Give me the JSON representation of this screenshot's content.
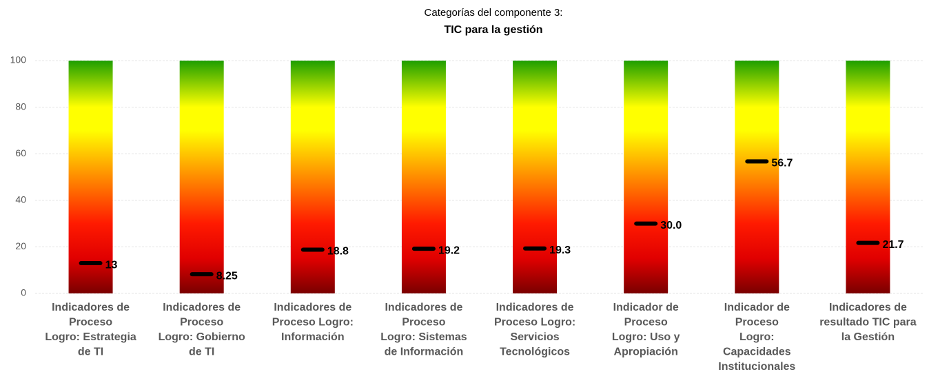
{
  "chart_data": {
    "type": "marker",
    "title": "Categorías del componente 3:",
    "subtitle": "TIC para la gestión",
    "categories": [
      [
        "Indicadores de",
        "Proceso",
        "Logro: Estrategia",
        "de TI"
      ],
      [
        "Indicadores de",
        "Proceso",
        "Logro: Gobierno",
        "de TI"
      ],
      [
        "Indicadores de",
        "Proceso Logro:",
        "Información"
      ],
      [
        "Indicadores de",
        "Proceso",
        "Logro: Sistemas",
        "de Información"
      ],
      [
        "Indicadores de",
        "Proceso  Logro:",
        "Servicios",
        "Tecnológicos"
      ],
      [
        "Indicador de",
        "Proceso",
        "Logro: Uso y",
        "Apropiación"
      ],
      [
        "Indicador de",
        "Proceso",
        "Logro:",
        "Capacidades",
        "Institucionales"
      ],
      [
        "Indicadores de",
        "resultado TIC para",
        "la Gestión"
      ]
    ],
    "values": [
      13,
      8.25,
      18.8,
      19.2,
      19.3,
      30.0,
      56.7,
      21.7
    ],
    "value_labels": [
      "13",
      "8.25",
      "18.8",
      "19.2",
      "19.3",
      "30.0",
      "56.7",
      "21.7"
    ],
    "color": "#000000",
    "ylim": [
      0,
      100
    ],
    "yticks": [
      0,
      20,
      40,
      60,
      80,
      100
    ],
    "grid": true
  }
}
